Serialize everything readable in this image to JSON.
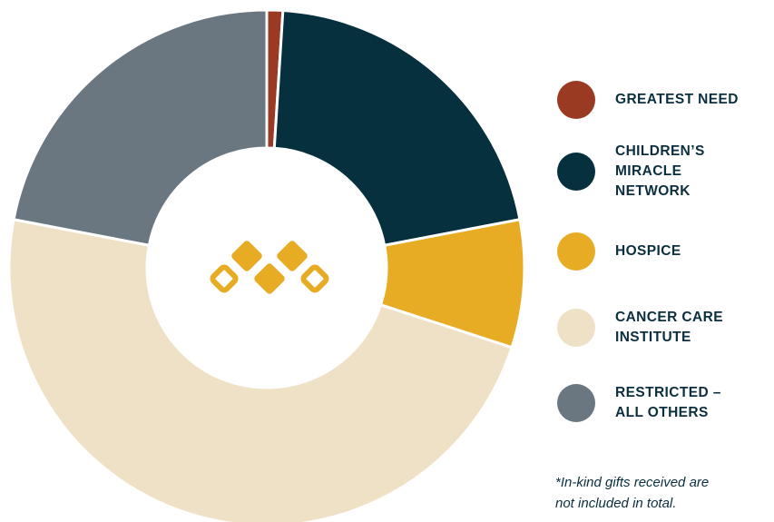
{
  "chart_data": {
    "type": "pie",
    "variant": "donut",
    "title": "",
    "categories": [
      "GREATEST NEED",
      "CHILDREN’S MIRACLE NETWORK",
      "HOSPICE",
      "CANCER CARE INSTITUTE",
      "RESTRICTED – ALL OTHERS"
    ],
    "values": [
      1,
      21,
      8,
      48,
      22
    ],
    "colors": [
      "#9b3a22",
      "#06303e",
      "#e8ab24",
      "#efe1c5",
      "#6a7780"
    ],
    "legend_position": "right",
    "center_icon": "diamond-logo-icon"
  },
  "legend": {
    "items": [
      {
        "lines": [
          "GREATEST NEED"
        ],
        "color": "#9b3a22"
      },
      {
        "lines": [
          "CHILDREN’S",
          "MIRACLE",
          "NETWORK"
        ],
        "color": "#06303e"
      },
      {
        "lines": [
          "HOSPICE"
        ],
        "color": "#e8ab24"
      },
      {
        "lines": [
          "CANCER CARE",
          "INSTITUTE"
        ],
        "color": "#efe1c5"
      },
      {
        "lines": [
          "RESTRICTED –",
          "ALL OTHERS"
        ],
        "color": "#6a7780"
      }
    ]
  },
  "footnote": {
    "line1": "*In-kind gifts received are",
    "line2": "not included in total."
  },
  "logo": {
    "icon": "diamond-logo-icon",
    "color": "#e8ab24"
  }
}
